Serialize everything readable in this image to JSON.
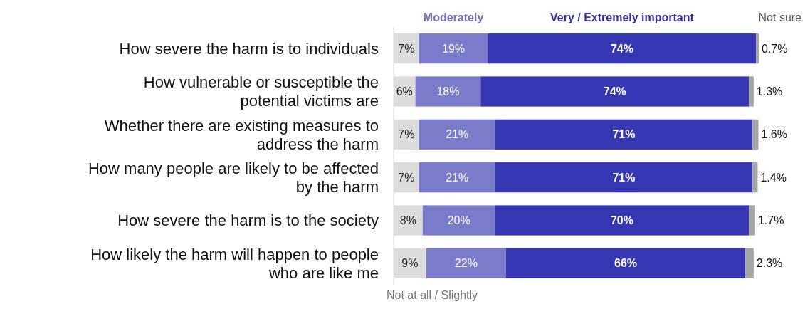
{
  "chart_data": {
    "type": "bar",
    "orientation": "horizontal",
    "stacked": true,
    "categories": [
      "How severe the harm is to individuals",
      "How vulnerable or susceptible the potential victims are",
      "Whether there are existing measures to address the harm",
      "How many people are likely to be affected by the harm",
      "How severe the harm is to the society",
      "How likely the harm will happen to people who are like me"
    ],
    "series": [
      {
        "name": "Not at all / Slightly",
        "color": "#dcdcdc",
        "values": [
          7,
          6,
          7,
          7,
          8,
          9
        ],
        "value_labels": [
          "7%",
          "6%",
          "7%",
          "7%",
          "8%",
          "9%"
        ]
      },
      {
        "name": "Moderately",
        "color": "#7b7bcc",
        "values": [
          19,
          18,
          21,
          21,
          20,
          22
        ],
        "value_labels": [
          "19%",
          "18%",
          "21%",
          "21%",
          "20%",
          "22%"
        ]
      },
      {
        "name": "Very / Extremely important",
        "color": "#3737b3",
        "values": [
          74,
          74,
          71,
          71,
          70,
          66
        ],
        "value_labels": [
          "74%",
          "74%",
          "71%",
          "71%",
          "70%",
          "66%"
        ]
      },
      {
        "name": "Not sure",
        "color": "#a5a5a5",
        "values": [
          0.7,
          1.3,
          1.6,
          1.4,
          1.7,
          2.3
        ],
        "value_labels": [
          "0.7%",
          "1.3%",
          "1.6%",
          "1.4%",
          "1.7%",
          "2.3%"
        ]
      }
    ]
  }
}
